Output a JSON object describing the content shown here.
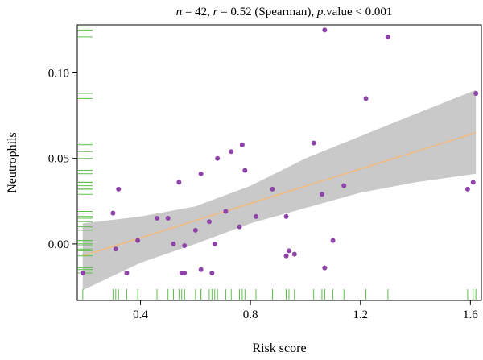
{
  "chart_data": {
    "type": "scatter",
    "title_parts": {
      "n_label": "n",
      "n_value": " = 42, ",
      "r_label": "r",
      "r_value": " = 0.52 (Spearman), ",
      "p_label": "p",
      "p_value": ".value < 0.001"
    },
    "xlabel": "Risk score",
    "ylabel": "Neutrophils",
    "xlim": [
      0.17,
      1.64
    ],
    "ylim": [
      -0.033,
      0.128
    ],
    "x_ticks": [
      {
        "value": 0.4,
        "label": "0.4"
      },
      {
        "value": 0.8,
        "label": "0.8"
      },
      {
        "value": 1.2,
        "label": "1.2"
      },
      {
        "value": 1.6,
        "label": "1.6"
      }
    ],
    "y_ticks": [
      {
        "value": 0.1,
        "label": "0.10"
      },
      {
        "value": 0.05,
        "label": "0.05"
      },
      {
        "value": 0.0,
        "label": "0.00"
      }
    ],
    "points": [
      {
        "x": 0.19,
        "y": -0.017
      },
      {
        "x": 0.3,
        "y": 0.018
      },
      {
        "x": 0.31,
        "y": -0.003
      },
      {
        "x": 0.32,
        "y": 0.032
      },
      {
        "x": 0.35,
        "y": -0.017
      },
      {
        "x": 0.39,
        "y": 0.002
      },
      {
        "x": 0.46,
        "y": 0.015
      },
      {
        "x": 0.5,
        "y": 0.015
      },
      {
        "x": 0.52,
        "y": 0.0
      },
      {
        "x": 0.54,
        "y": 0.036
      },
      {
        "x": 0.55,
        "y": -0.017
      },
      {
        "x": 0.56,
        "y": -0.017
      },
      {
        "x": 0.56,
        "y": -0.001
      },
      {
        "x": 0.6,
        "y": 0.008
      },
      {
        "x": 0.62,
        "y": 0.041
      },
      {
        "x": 0.62,
        "y": -0.015
      },
      {
        "x": 0.65,
        "y": 0.013
      },
      {
        "x": 0.66,
        "y": -0.017
      },
      {
        "x": 0.67,
        "y": 0.0
      },
      {
        "x": 0.68,
        "y": 0.05
      },
      {
        "x": 0.71,
        "y": 0.019
      },
      {
        "x": 0.73,
        "y": 0.054
      },
      {
        "x": 0.76,
        "y": 0.01
      },
      {
        "x": 0.77,
        "y": 0.058
      },
      {
        "x": 0.78,
        "y": 0.043
      },
      {
        "x": 0.82,
        "y": 0.016
      },
      {
        "x": 0.88,
        "y": 0.032
      },
      {
        "x": 0.93,
        "y": 0.016
      },
      {
        "x": 0.93,
        "y": -0.007
      },
      {
        "x": 0.94,
        "y": -0.004
      },
      {
        "x": 0.96,
        "y": -0.006
      },
      {
        "x": 1.03,
        "y": 0.059
      },
      {
        "x": 1.06,
        "y": 0.029
      },
      {
        "x": 1.07,
        "y": 0.125
      },
      {
        "x": 1.07,
        "y": -0.014
      },
      {
        "x": 1.1,
        "y": 0.002
      },
      {
        "x": 1.14,
        "y": 0.034
      },
      {
        "x": 1.22,
        "y": 0.085
      },
      {
        "x": 1.3,
        "y": 0.121
      },
      {
        "x": 1.59,
        "y": 0.032
      },
      {
        "x": 1.62,
        "y": 0.088
      },
      {
        "x": 1.61,
        "y": 0.036
      }
    ],
    "fit_line": {
      "x": [
        0.19,
        1.62
      ],
      "y": [
        -0.007,
        0.065
      ]
    },
    "confidence_band": {
      "x": [
        0.19,
        0.4,
        0.6,
        0.8,
        1.0,
        1.2,
        1.4,
        1.62
      ],
      "upper": [
        0.012,
        0.016,
        0.022,
        0.034,
        0.05,
        0.063,
        0.076,
        0.09
      ],
      "lower": [
        -0.027,
        -0.011,
        0.0,
        0.012,
        0.021,
        0.03,
        0.036,
        0.041
      ]
    },
    "colors": {
      "points": "#8e44a8",
      "fit_line": "#f5b97a",
      "band": "#c9c9c9",
      "rug": "#5cbf4a"
    },
    "grid": false,
    "rug": true
  }
}
